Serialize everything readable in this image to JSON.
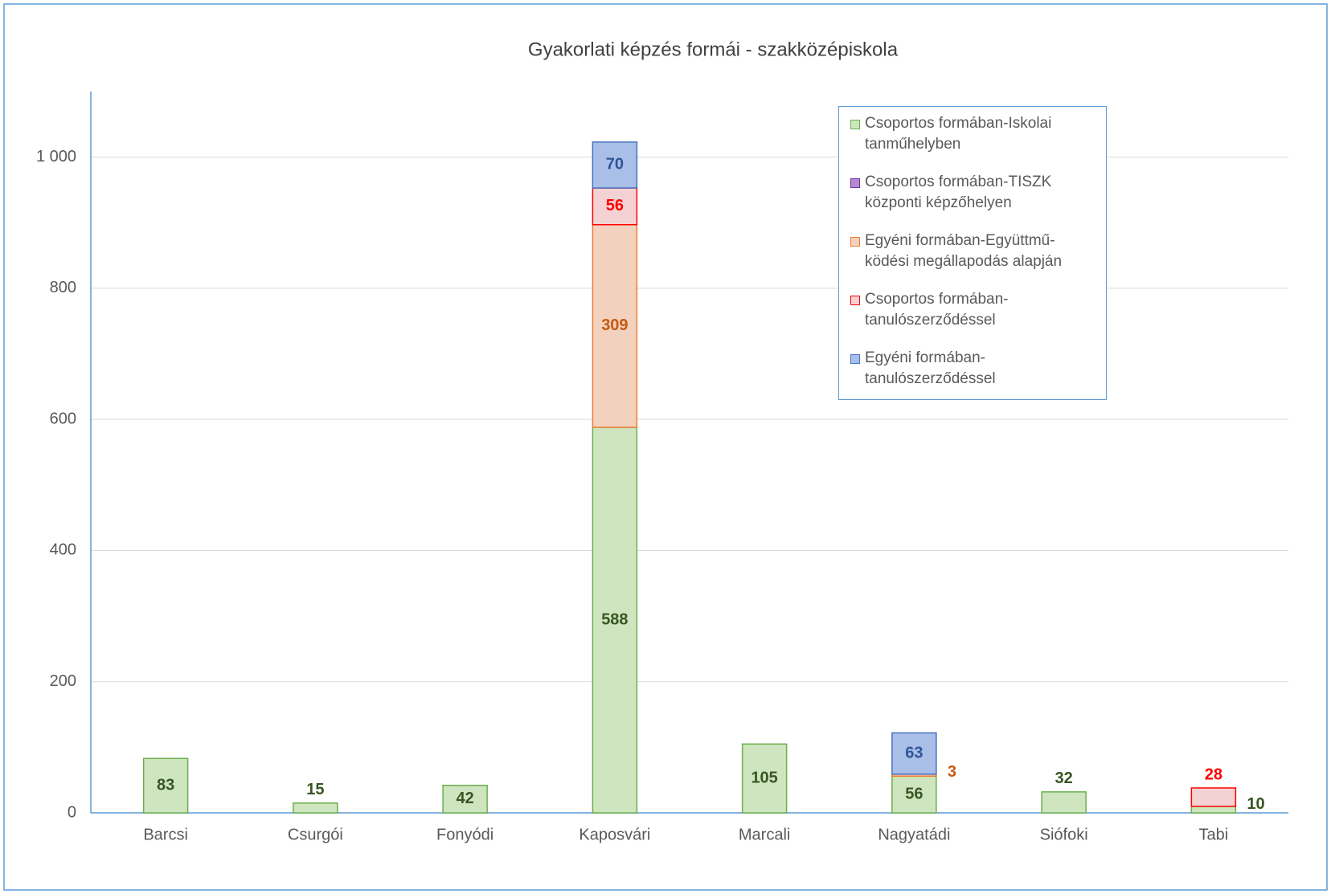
{
  "chart_data": {
    "type": "stacked_bar",
    "title": "Gyakorlati képzés formái - szakközépiskola",
    "categories": [
      "Barcsi",
      "Csurgói",
      "Fonyódi",
      "Kaposvári",
      "Marcali",
      "Nagyatádi",
      "Siófoki",
      "Tabi"
    ],
    "series": [
      {
        "name": "Csoportos formában-Iskolai tanműhelyben",
        "color": "#cfe5bf",
        "stroke": "#6ab04c",
        "label_color": "#375623",
        "values": [
          83,
          15,
          42,
          588,
          105,
          56,
          32,
          10
        ]
      },
      {
        "name": "Csoportos formában-TISZK központi képzőhelyen",
        "color": "#b28ad0",
        "stroke": "#7030a0",
        "label_color": "#7030a0",
        "values": [
          null,
          null,
          null,
          null,
          null,
          null,
          null,
          null
        ]
      },
      {
        "name": "Egyéni formában-Együttmű-ködési megállapodás alapján",
        "color": "#f3d1bf",
        "stroke": "#ed7d31",
        "label_color": "#c55a11",
        "values": [
          null,
          null,
          null,
          309,
          null,
          3,
          null,
          null
        ]
      },
      {
        "name": "Csoportos formában-tanulószerződéssel",
        "color": "#f4d2d4",
        "stroke": "#ff0000",
        "label_color": "#ff0000",
        "values": [
          null,
          null,
          null,
          56,
          null,
          null,
          null,
          28
        ]
      },
      {
        "name": "Egyéni formában-tanulószerződéssel",
        "color": "#a9bfe8",
        "stroke": "#4472c4",
        "label_color": "#2f5597",
        "values": [
          null,
          null,
          null,
          70,
          null,
          63,
          null,
          null
        ]
      }
    ],
    "ylim": [
      0,
      1100
    ],
    "yticks": [
      0,
      200,
      400,
      600,
      800,
      {
        "value": 1000,
        "label": "1 000"
      }
    ],
    "grid": true,
    "legend": "top-right"
  }
}
